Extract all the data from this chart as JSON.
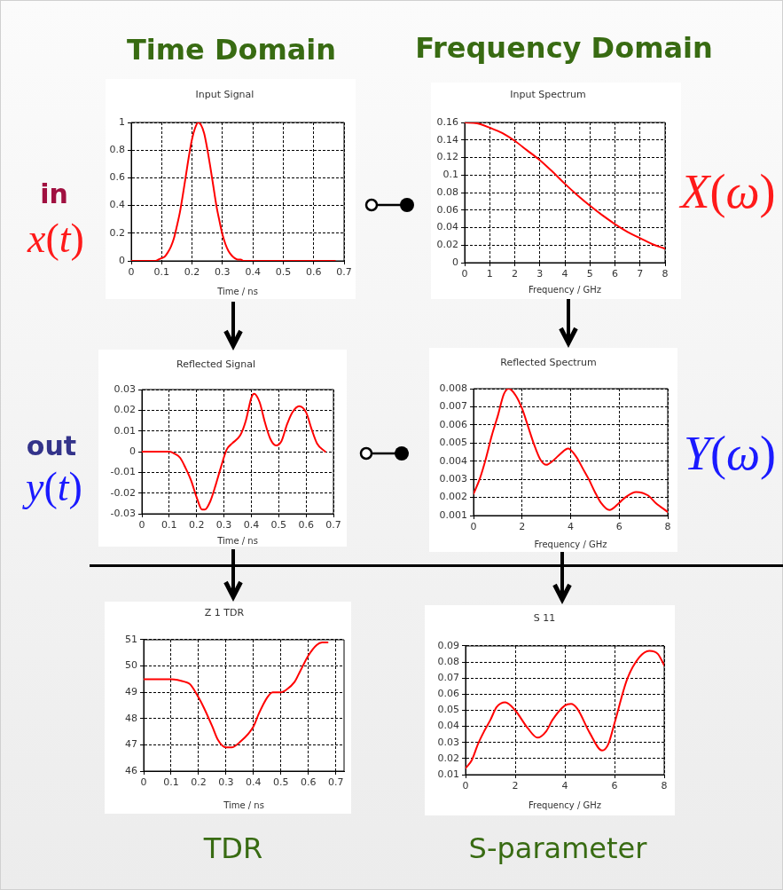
{
  "chart_data": [
    {
      "type": "line",
      "title": "Input Signal",
      "xlabel": "Time / ns",
      "x": [
        0,
        0.05,
        0.07,
        0.08,
        0.09,
        0.1,
        0.11,
        0.12,
        0.13,
        0.14,
        0.15,
        0.16,
        0.17,
        0.18,
        0.19,
        0.2,
        0.21,
        0.22,
        0.23,
        0.24,
        0.25,
        0.26,
        0.27,
        0.28,
        0.29,
        0.3,
        0.31,
        0.32,
        0.33,
        0.34,
        0.35,
        0.36,
        0.37,
        0.4,
        0.5,
        0.6,
        0.67
      ],
      "series": [
        {
          "color": "#ff0000",
          "values": [
            0,
            0,
            0,
            0,
            0.01,
            0.02,
            0.03,
            0.06,
            0.1,
            0.16,
            0.25,
            0.35,
            0.48,
            0.62,
            0.76,
            0.88,
            0.96,
            1,
            0.98,
            0.92,
            0.81,
            0.68,
            0.54,
            0.4,
            0.29,
            0.19,
            0.12,
            0.07,
            0.04,
            0.02,
            0.01,
            0.01,
            0,
            0,
            0,
            0,
            0
          ]
        }
      ],
      "xlim": [
        0,
        0.7
      ],
      "ylim": [
        0,
        1
      ],
      "xticks": [
        0,
        0.1,
        0.2,
        0.3,
        0.4,
        0.5,
        0.6,
        0.7
      ],
      "yticks": [
        0,
        0.2,
        0.4,
        0.6,
        0.8,
        1
      ],
      "grid": true,
      "annotations": [
        "Time Domain",
        "in",
        "x(t)"
      ]
    },
    {
      "type": "line",
      "title": "Input Spectrum",
      "xlabel": "Frequency / GHz",
      "x": [
        0,
        0.5,
        1,
        1.5,
        2,
        2.5,
        3,
        3.5,
        4,
        4.5,
        5,
        5.5,
        6,
        6.5,
        7,
        7.5,
        8
      ],
      "series": [
        {
          "color": "#ff0000",
          "values": [
            0.16,
            0.159,
            0.154,
            0.148,
            0.139,
            0.128,
            0.117,
            0.104,
            0.09,
            0.077,
            0.065,
            0.054,
            0.044,
            0.035,
            0.028,
            0.021,
            0.016
          ]
        }
      ],
      "xlim": [
        0,
        8
      ],
      "ylim": [
        0,
        0.16
      ],
      "xticks": [
        0,
        1,
        2,
        3,
        4,
        5,
        6,
        7,
        8
      ],
      "yticks": [
        0,
        0.02,
        0.04,
        0.06,
        0.08,
        0.1,
        0.12,
        0.14,
        0.16
      ],
      "grid": true,
      "annotations": [
        "Frequency Domain",
        "X(ω)"
      ]
    },
    {
      "type": "line",
      "title": "Reflected Signal",
      "xlabel": "Time / ns",
      "x": [
        0,
        0.05,
        0.1,
        0.12,
        0.14,
        0.16,
        0.18,
        0.2,
        0.22,
        0.23,
        0.25,
        0.27,
        0.29,
        0.31,
        0.33,
        0.36,
        0.38,
        0.4,
        0.41,
        0.43,
        0.45,
        0.47,
        0.49,
        0.51,
        0.53,
        0.55,
        0.575,
        0.6,
        0.62,
        0.64,
        0.67
      ],
      "series": [
        {
          "color": "#ff0000",
          "values": [
            0,
            0,
            0,
            -0.001,
            -0.003,
            -0.008,
            -0.014,
            -0.022,
            -0.028,
            -0.028,
            -0.024,
            -0.016,
            -0.007,
            0.001,
            0.004,
            0.008,
            0.015,
            0.026,
            0.028,
            0.024,
            0.014,
            0.006,
            0.003,
            0.005,
            0.013,
            0.019,
            0.022,
            0.019,
            0.011,
            0.004,
            0
          ]
        }
      ],
      "xlim": [
        0,
        0.7
      ],
      "ylim": [
        -0.03,
        0.03
      ],
      "xticks": [
        0,
        0.1,
        0.2,
        0.3,
        0.4,
        0.5,
        0.6,
        0.7
      ],
      "yticks": [
        -0.03,
        -0.02,
        -0.01,
        0,
        0.01,
        0.02,
        0.03
      ],
      "grid": true,
      "annotations": [
        "out",
        "y(t)"
      ]
    },
    {
      "type": "line",
      "title": "Reflected Spectrum",
      "xlabel": "Frequency / GHz",
      "x": [
        0,
        0.25,
        0.5,
        0.75,
        1,
        1.25,
        1.45,
        1.75,
        2,
        2.25,
        2.5,
        2.75,
        3,
        3.25,
        3.5,
        3.9,
        4.25,
        4.5,
        4.75,
        5,
        5.25,
        5.6,
        6,
        6.25,
        6.7,
        7.2,
        7.5,
        8
      ],
      "series": [
        {
          "color": "#ff0000",
          "values": [
            0.0022,
            0.003,
            0.0041,
            0.0054,
            0.0065,
            0.0077,
            0.008,
            0.0076,
            0.0069,
            0.0059,
            0.0049,
            0.0041,
            0.0038,
            0.004,
            0.0043,
            0.0047,
            0.0042,
            0.0036,
            0.003,
            0.0023,
            0.0017,
            0.0013,
            0.0017,
            0.002,
            0.0023,
            0.0021,
            0.0017,
            0.0012
          ]
        }
      ],
      "xlim": [
        0,
        8
      ],
      "ylim": [
        0.001,
        0.008
      ],
      "xticks": [
        0,
        2,
        4,
        6,
        8
      ],
      "yticks": [
        0.001,
        0.002,
        0.003,
        0.004,
        0.005,
        0.006,
        0.007,
        0.008
      ],
      "grid": true,
      "annotations": [
        "Y(ω)"
      ]
    },
    {
      "type": "line",
      "title": "Z 1 TDR",
      "xlabel": "Time / ns",
      "x": [
        0,
        0.05,
        0.1,
        0.15,
        0.17,
        0.2,
        0.22,
        0.25,
        0.27,
        0.3,
        0.32,
        0.35,
        0.4,
        0.42,
        0.45,
        0.47,
        0.5,
        0.52,
        0.55,
        0.57,
        0.6,
        0.63,
        0.65,
        0.67
      ],
      "series": [
        {
          "color": "#ff0000",
          "values": [
            49.5,
            49.5,
            49.5,
            49.4,
            49.3,
            48.8,
            48.4,
            47.7,
            47.2,
            46.9,
            46.9,
            47.1,
            47.7,
            48.2,
            48.8,
            49,
            49,
            49.1,
            49.4,
            49.8,
            50.4,
            50.8,
            50.9,
            50.9
          ]
        }
      ],
      "xlim": [
        0,
        0.73
      ],
      "ylim": [
        46,
        51
      ],
      "xticks": [
        0,
        0.1,
        0.2,
        0.3,
        0.4,
        0.5,
        0.6,
        0.7
      ],
      "yticks": [
        46,
        47,
        48,
        49,
        50,
        51
      ],
      "grid": true,
      "annotations": [
        "TDR"
      ]
    },
    {
      "type": "line",
      "title": "S 11",
      "xlabel": "Frequency / GHz",
      "x": [
        0,
        0.25,
        0.5,
        0.75,
        1,
        1.25,
        1.6,
        2,
        2.5,
        2.9,
        3.25,
        3.5,
        4,
        4.25,
        4.5,
        5,
        5.5,
        5.75,
        6,
        6.5,
        7,
        7.4,
        7.75,
        8
      ],
      "series": [
        {
          "color": "#ff0000",
          "values": [
            0.014,
            0.019,
            0.029,
            0.037,
            0.044,
            0.052,
            0.055,
            0.05,
            0.039,
            0.033,
            0.037,
            0.044,
            0.053,
            0.054,
            0.051,
            0.036,
            0.025,
            0.029,
            0.042,
            0.069,
            0.083,
            0.087,
            0.085,
            0.078
          ]
        }
      ],
      "xlim": [
        0,
        8
      ],
      "ylim": [
        0.01,
        0.09
      ],
      "xticks": [
        0,
        2,
        4,
        6,
        8
      ],
      "yticks": [
        0.01,
        0.02,
        0.03,
        0.04,
        0.05,
        0.06,
        0.07,
        0.08,
        0.09
      ],
      "grid": true,
      "annotations": [
        "S-parameter"
      ]
    }
  ]
}
